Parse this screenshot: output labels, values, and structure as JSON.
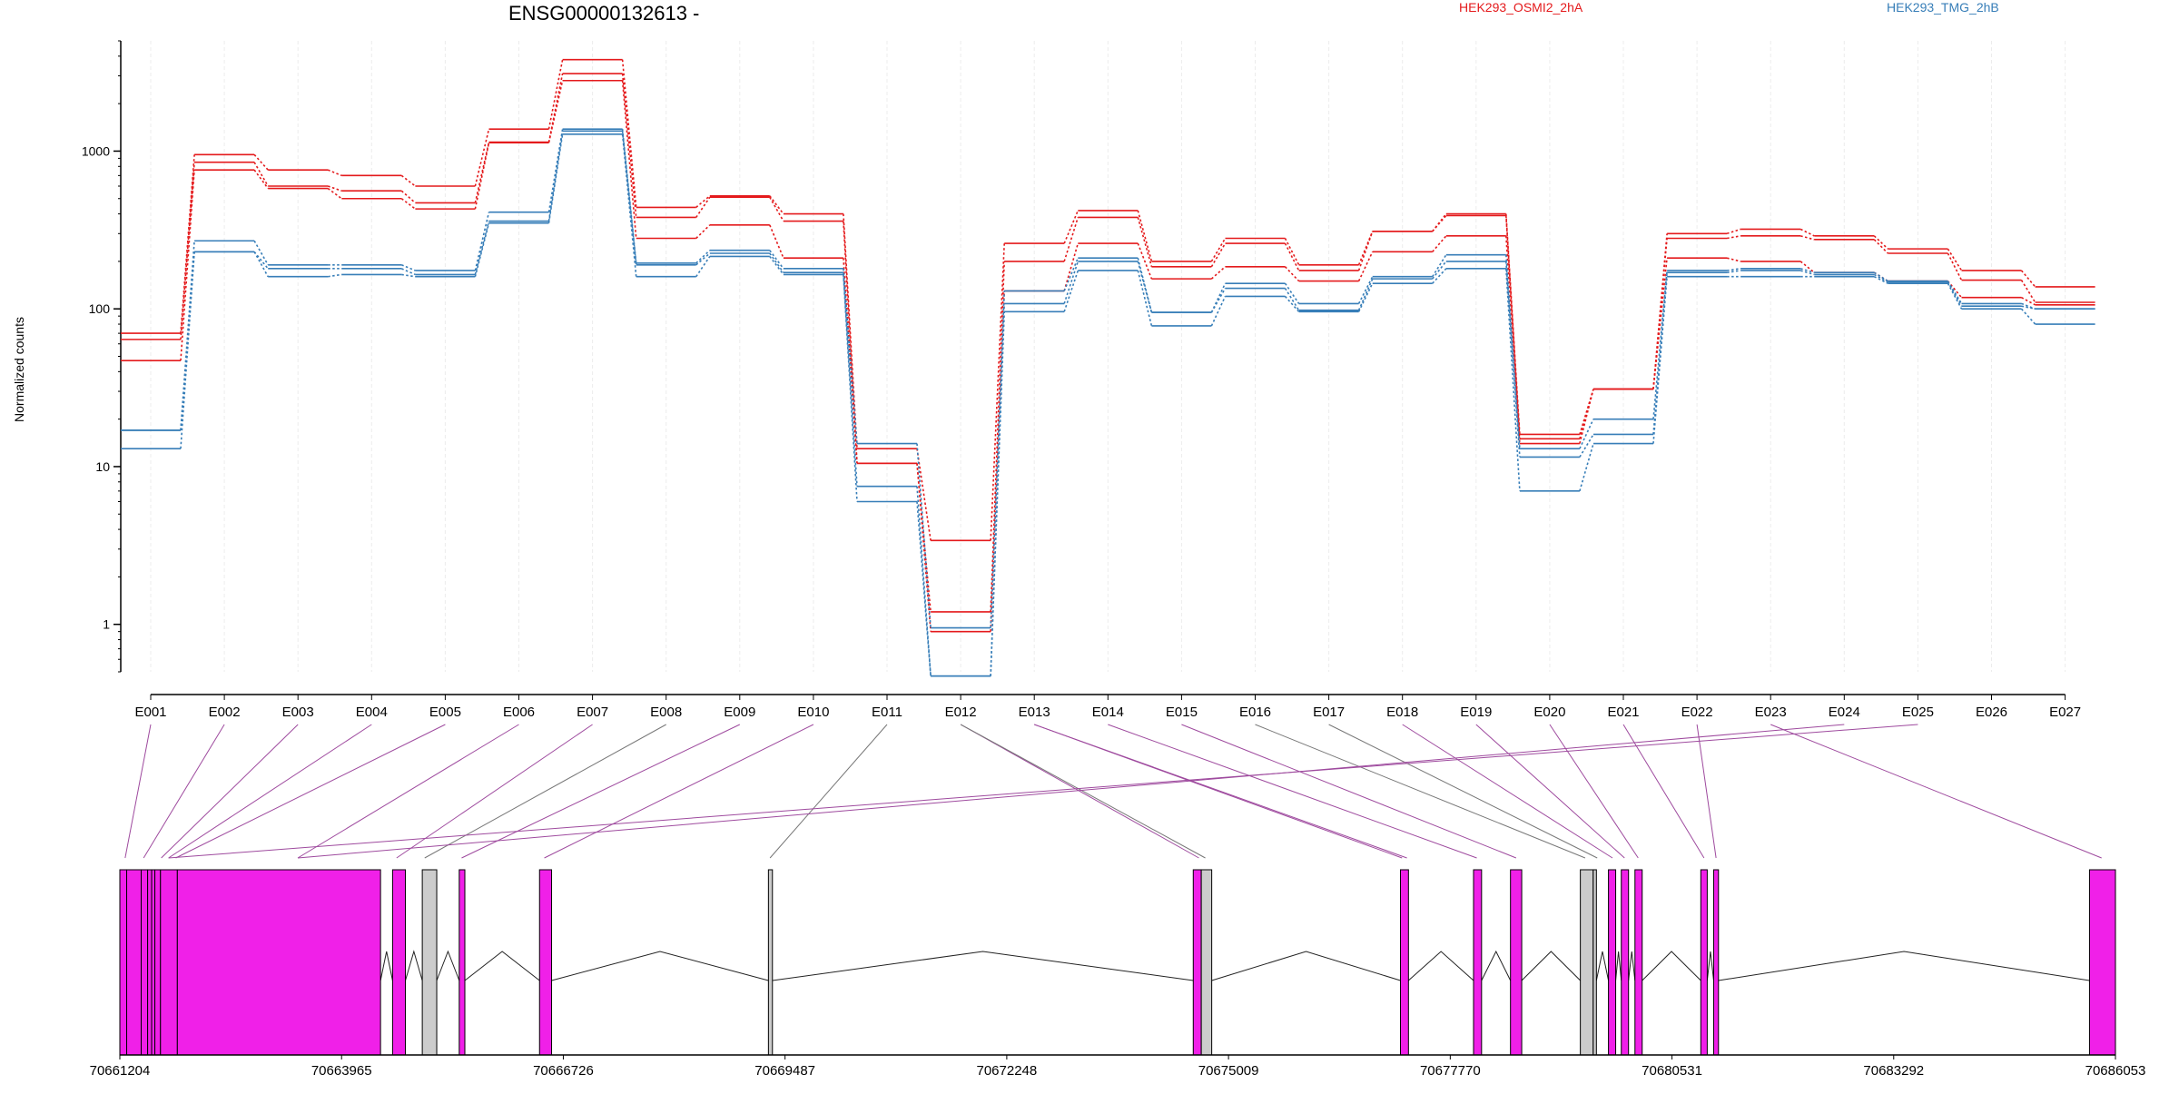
{
  "chart_data": {
    "type": "line",
    "title": "ENSG00000132613 -",
    "ylabel": "Normalized counts",
    "yscale": "log",
    "ylim": [
      0.5,
      5000
    ],
    "y_ticks": [
      1,
      10,
      100,
      1000
    ],
    "y_tick_labels": [
      "1",
      "10",
      "100",
      "1000"
    ],
    "grid": "vertical",
    "legend_position": "top",
    "categories": [
      "E001",
      "E002",
      "E003",
      "E004",
      "E005",
      "E006",
      "E007",
      "E008",
      "E009",
      "E010",
      "E011",
      "E012",
      "E013",
      "E014",
      "E015",
      "E016",
      "E017",
      "E018",
      "E019",
      "E020",
      "E021",
      "E022",
      "E023",
      "E024",
      "E025",
      "E026",
      "E027"
    ],
    "groups": [
      {
        "name": "HEK293_OSMI2_2hA",
        "color": "#e41a1c"
      },
      {
        "name": "HEK293_TMG_2hB",
        "color": "#377eb8"
      }
    ],
    "series": [
      {
        "group": 0,
        "values": [
          70,
          950,
          760,
          700,
          600,
          1380,
          3800,
          440,
          520,
          400,
          13,
          3.4,
          260,
          420,
          200,
          280,
          190,
          310,
          400,
          16,
          31,
          300,
          320,
          290,
          240,
          175,
          138
        ]
      },
      {
        "group": 0,
        "values": [
          64,
          850,
          600,
          560,
          470,
          1140,
          3100,
          380,
          510,
          360,
          10.5,
          1.2,
          200,
          380,
          185,
          260,
          175,
          310,
          390,
          15,
          31,
          280,
          290,
          275,
          225,
          152,
          110
        ]
      },
      {
        "group": 0,
        "values": [
          47,
          760,
          580,
          500,
          430,
          1130,
          2800,
          280,
          340,
          210,
          10.5,
          0.9,
          130,
          260,
          155,
          185,
          150,
          230,
          290,
          14,
          31,
          210,
          200,
          170,
          150,
          118,
          106
        ]
      },
      {
        "group": 1,
        "values": [
          17,
          270,
          190,
          190,
          175,
          410,
          1380,
          195,
          235,
          180,
          14,
          0.95,
          130,
          210,
          95,
          145,
          108,
          160,
          220,
          13,
          20,
          175,
          180,
          170,
          150,
          108,
          100
        ]
      },
      {
        "group": 1,
        "values": [
          17,
          230,
          180,
          180,
          165,
          360,
          1340,
          190,
          225,
          170,
          7.5,
          0.47,
          108,
          200,
          95,
          135,
          98,
          155,
          200,
          11.5,
          16,
          170,
          175,
          165,
          148,
          104,
          100
        ]
      },
      {
        "group": 1,
        "values": [
          13,
          230,
          160,
          165,
          160,
          350,
          1280,
          160,
          215,
          165,
          6,
          0.47,
          96,
          175,
          78,
          120,
          96,
          145,
          180,
          7,
          14,
          160,
          160,
          160,
          145,
          100,
          80
        ]
      }
    ],
    "gene_axis": {
      "tick_labels": [
        "70661204",
        "70663965",
        "70666726",
        "70669487",
        "70672248",
        "70675009",
        "70677770",
        "70680531",
        "70683292",
        "70686053"
      ],
      "range": [
        70661204,
        70686053
      ],
      "connected_color": "#9e4a9e",
      "unconnected_color": "#777777",
      "exon_color": "#f020e8",
      "intron_color": "#cccccc"
    },
    "gene_model": {
      "blocks": [
        {
          "start": 70661204,
          "end": 70661289,
          "kind": "exon"
        },
        {
          "start": 70661289,
          "end": 70661470,
          "kind": "exon"
        },
        {
          "start": 70661470,
          "end": 70661550,
          "kind": "exon"
        },
        {
          "start": 70661550,
          "end": 70661600,
          "kind": "exon"
        },
        {
          "start": 70661600,
          "end": 70661640,
          "kind": "exon"
        },
        {
          "start": 70661640,
          "end": 70661710,
          "kind": "exon"
        },
        {
          "start": 70661710,
          "end": 70661920,
          "kind": "exon"
        },
        {
          "start": 70661920,
          "end": 70664450,
          "kind": "exon"
        },
        {
          "start": 70664600,
          "end": 70664760,
          "kind": "exon"
        },
        {
          "start": 70664970,
          "end": 70665150,
          "kind": "intron"
        },
        {
          "start": 70665430,
          "end": 70665500,
          "kind": "exon"
        },
        {
          "start": 70666430,
          "end": 70666580,
          "kind": "exon"
        },
        {
          "start": 70669280,
          "end": 70669330,
          "kind": "intron"
        },
        {
          "start": 70674570,
          "end": 70674670,
          "kind": "exon"
        },
        {
          "start": 70674670,
          "end": 70674800,
          "kind": "intron"
        },
        {
          "start": 70677150,
          "end": 70677250,
          "kind": "exon"
        },
        {
          "start": 70678060,
          "end": 70678160,
          "kind": "exon"
        },
        {
          "start": 70678520,
          "end": 70678660,
          "kind": "exon"
        },
        {
          "start": 70679390,
          "end": 70679550,
          "kind": "intron"
        },
        {
          "start": 70679550,
          "end": 70679590,
          "kind": "intron"
        },
        {
          "start": 70679740,
          "end": 70679830,
          "kind": "exon"
        },
        {
          "start": 70679900,
          "end": 70679990,
          "kind": "exon"
        },
        {
          "start": 70680070,
          "end": 70680160,
          "kind": "exon"
        },
        {
          "start": 70680890,
          "end": 70680970,
          "kind": "exon"
        },
        {
          "start": 70681050,
          "end": 70681110,
          "kind": "exon"
        },
        {
          "start": 70685730,
          "end": 70686053,
          "kind": "exon"
        }
      ],
      "junctions": [
        [
          70664450,
          70664600
        ],
        [
          70664760,
          70664970
        ],
        [
          70665150,
          70665430
        ],
        [
          70665500,
          70666430
        ],
        [
          70666580,
          70669280
        ],
        [
          70669330,
          70674570
        ],
        [
          70674800,
          70677150
        ],
        [
          70677250,
          70678060
        ],
        [
          70678160,
          70678520
        ],
        [
          70678660,
          70679390
        ],
        [
          70679590,
          70679740
        ],
        [
          70679830,
          70679900
        ],
        [
          70679990,
          70680070
        ],
        [
          70680160,
          70680890
        ],
        [
          70680970,
          70681050
        ],
        [
          70681110,
          70685730
        ]
      ],
      "exon_positions": [
        {
          "pos": 70661270,
          "connected": true
        },
        {
          "pos": 70661500,
          "connected": true
        },
        {
          "pos": 70661720,
          "connected": true
        },
        {
          "pos": 70661810,
          "connected": true
        },
        {
          "pos": 70661900,
          "connected": true
        },
        {
          "pos": 70663420,
          "connected": true
        },
        {
          "pos": 70664650,
          "connected": true
        },
        {
          "pos": 70665000,
          "connected": false
        },
        {
          "pos": 70665460,
          "connected": true
        },
        {
          "pos": 70666490,
          "connected": true
        },
        {
          "pos": 70669300,
          "connected": false
        },
        {
          "pos": 70674580,
          "connected": true
        },
        {
          "pos": 70674640,
          "connected": true
        },
        {
          "pos": 70674720,
          "connected": false
        },
        {
          "pos": 70677170,
          "connected": true
        },
        {
          "pos": 70677230,
          "connected": true
        },
        {
          "pos": 70678100,
          "connected": true
        },
        {
          "pos": 70678590,
          "connected": true
        },
        {
          "pos": 70679450,
          "connected": false
        },
        {
          "pos": 70679600,
          "connected": false
        },
        {
          "pos": 70679790,
          "connected": true
        },
        {
          "pos": 70679940,
          "connected": true
        },
        {
          "pos": 70680110,
          "connected": true
        },
        {
          "pos": 70680930,
          "connected": true
        },
        {
          "pos": 70681080,
          "connected": true
        },
        {
          "pos": 70685880,
          "connected": true
        }
      ],
      "links": [
        [
          0,
          0
        ],
        [
          1,
          1
        ],
        [
          2,
          2
        ],
        [
          3,
          3
        ],
        [
          4,
          4
        ],
        [
          5,
          5
        ],
        [
          6,
          6
        ],
        [
          7,
          7
        ],
        [
          8,
          8
        ],
        [
          9,
          9
        ],
        [
          10,
          10
        ],
        [
          11,
          12
        ],
        [
          11,
          13
        ],
        [
          12,
          14
        ],
        [
          12,
          15
        ],
        [
          13,
          16
        ],
        [
          14,
          17
        ],
        [
          15,
          18
        ],
        [
          16,
          19
        ],
        [
          17,
          20
        ],
        [
          18,
          21
        ],
        [
          19,
          22
        ],
        [
          20,
          23
        ],
        [
          21,
          24
        ],
        [
          22,
          25
        ],
        [
          23,
          5
        ],
        [
          24,
          3
        ]
      ]
    }
  }
}
